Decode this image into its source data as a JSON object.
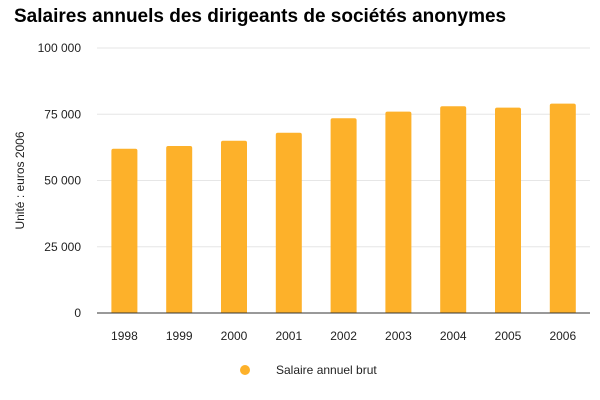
{
  "chart_data": {
    "type": "bar",
    "title": "Salaires annuels des dirigeants de sociétés anonymes",
    "xlabel": "",
    "ylabel": "Unité : euros 2006",
    "categories": [
      "1998",
      "1999",
      "2000",
      "2001",
      "2002",
      "2003",
      "2004",
      "2005",
      "2006"
    ],
    "series": [
      {
        "name": "Salaire annuel brut",
        "values": [
          62000,
          63000,
          65000,
          68000,
          73500,
          76000,
          78000,
          77500,
          79000
        ]
      }
    ],
    "ylim": [
      0,
      100000
    ],
    "yticks": [
      0,
      25000,
      50000,
      75000,
      100000
    ],
    "ytick_labels": [
      "0",
      "25 000",
      "50 000",
      "75 000",
      "100 000"
    ],
    "grid": true,
    "legend_position": "bottom",
    "colors": {
      "bar": "#FDB12A",
      "grid": "#e6e6e6",
      "axis": "#333333"
    }
  }
}
